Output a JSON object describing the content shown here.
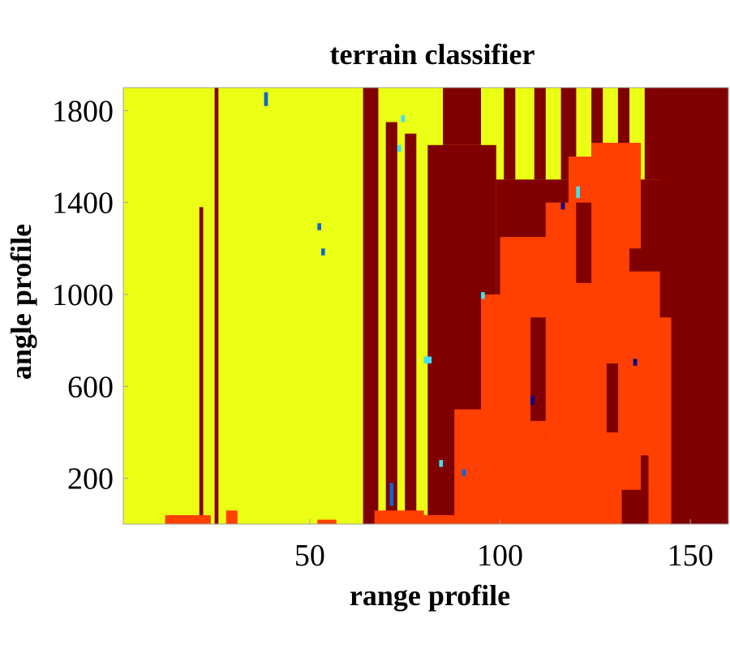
{
  "chart_data": {
    "type": "heatmap",
    "title": "terrain classifier",
    "xlabel": "range profile",
    "ylabel": "angle profile",
    "xlim": [
      1,
      160
    ],
    "ylim": [
      1,
      1900
    ],
    "x_ticks": [
      50,
      100,
      150
    ],
    "y_ticks": [
      200,
      600,
      1000,
      1400,
      1800
    ],
    "grid": false,
    "legend": "none",
    "colors": {
      "class_yellow": "#eaff14",
      "class_darkred": "#800000",
      "class_red": "#ff4000",
      "class_cyan": "#40e0f0",
      "class_blue": "#1464d0",
      "class_navy": "#00008f"
    },
    "background_class": "class_yellow",
    "regions": [
      {
        "class": "class_darkred",
        "x": [
          25,
          26
        ],
        "y": [
          1,
          1900
        ]
      },
      {
        "class": "class_darkred",
        "x": [
          21,
          22
        ],
        "y": [
          1,
          1380
        ]
      },
      {
        "class": "class_red",
        "x": [
          12,
          24
        ],
        "y": [
          1,
          40
        ]
      },
      {
        "class": "class_red",
        "x": [
          28,
          31
        ],
        "y": [
          1,
          60
        ]
      },
      {
        "class": "class_red",
        "x": [
          52,
          57
        ],
        "y": [
          1,
          20
        ]
      },
      {
        "class": "class_darkred",
        "x": [
          64,
          68
        ],
        "y": [
          1,
          1900
        ]
      },
      {
        "class": "class_darkred",
        "x": [
          70,
          73
        ],
        "y": [
          1,
          1750
        ]
      },
      {
        "class": "class_darkred",
        "x": [
          75,
          78
        ],
        "y": [
          1,
          1700
        ]
      },
      {
        "class": "class_red",
        "x": [
          67,
          80
        ],
        "y": [
          1,
          60
        ]
      },
      {
        "class": "class_darkred",
        "x": [
          81,
          99
        ],
        "y": [
          1,
          1650
        ]
      },
      {
        "class": "class_darkred",
        "x": [
          85,
          95
        ],
        "y": [
          1650,
          1900
        ]
      },
      {
        "class": "class_darkred",
        "x": [
          99,
          160
        ],
        "y": [
          1,
          1500
        ]
      },
      {
        "class": "class_darkred",
        "x": [
          101,
          104
        ],
        "y": [
          1500,
          1900
        ]
      },
      {
        "class": "class_darkred",
        "x": [
          109,
          112
        ],
        "y": [
          1500,
          1900
        ]
      },
      {
        "class": "class_darkred",
        "x": [
          116,
          120
        ],
        "y": [
          1500,
          1900
        ]
      },
      {
        "class": "class_darkred",
        "x": [
          124,
          127
        ],
        "y": [
          1500,
          1900
        ]
      },
      {
        "class": "class_darkred",
        "x": [
          131,
          134
        ],
        "y": [
          1500,
          1900
        ]
      },
      {
        "class": "class_darkred",
        "x": [
          138,
          160
        ],
        "y": [
          1500,
          1900
        ]
      },
      {
        "class": "class_darkred",
        "x": [
          142,
          145
        ],
        "y": [
          1400,
          1900
        ]
      },
      {
        "class": "class_red",
        "x": [
          88,
          112
        ],
        "y": [
          1,
          500
        ]
      },
      {
        "class": "class_red",
        "x": [
          95,
          118
        ],
        "y": [
          400,
          1000
        ]
      },
      {
        "class": "class_red",
        "x": [
          100,
          122
        ],
        "y": [
          950,
          1250
        ]
      },
      {
        "class": "class_red",
        "x": [
          112,
          128
        ],
        "y": [
          700,
          1400
        ]
      },
      {
        "class": "class_red",
        "x": [
          118,
          134
        ],
        "y": [
          1100,
          1600
        ]
      },
      {
        "class": "class_red",
        "x": [
          124,
          137
        ],
        "y": [
          1200,
          1660
        ]
      },
      {
        "class": "class_red",
        "x": [
          106,
          132
        ],
        "y": [
          1,
          350
        ]
      },
      {
        "class": "class_red",
        "x": [
          116,
          137
        ],
        "y": [
          150,
          700
        ]
      },
      {
        "class": "class_red",
        "x": [
          126,
          142
        ],
        "y": [
          500,
          1100
        ]
      },
      {
        "class": "class_red",
        "x": [
          139,
          145
        ],
        "y": [
          1,
          900
        ]
      },
      {
        "class": "class_red",
        "x": [
          112,
          140
        ],
        "y": [
          300,
          850
        ]
      },
      {
        "class": "class_red",
        "x": [
          76,
          88
        ],
        "y": [
          1,
          40
        ]
      },
      {
        "class": "class_darkred",
        "x": [
          108,
          112
        ],
        "y": [
          450,
          900
        ]
      },
      {
        "class": "class_darkred",
        "x": [
          120,
          124
        ],
        "y": [
          1050,
          1400
        ]
      },
      {
        "class": "class_darkred",
        "x": [
          128,
          131
        ],
        "y": [
          400,
          700
        ]
      },
      {
        "class": "class_darkred",
        "x": [
          145,
          160
        ],
        "y": [
          1,
          1900
        ]
      },
      {
        "class": "class_cyan",
        "x": [
          74,
          75
        ],
        "y": [
          1750,
          1780
        ]
      },
      {
        "class": "class_cyan",
        "x": [
          73,
          74
        ],
        "y": [
          1620,
          1650
        ]
      },
      {
        "class": "class_cyan",
        "x": [
          120,
          121
        ],
        "y": [
          1420,
          1470
        ]
      },
      {
        "class": "class_cyan",
        "x": [
          80,
          82
        ],
        "y": [
          700,
          730
        ]
      },
      {
        "class": "class_cyan",
        "x": [
          95,
          96
        ],
        "y": [
          980,
          1010
        ]
      },
      {
        "class": "class_cyan",
        "x": [
          84,
          85
        ],
        "y": [
          250,
          280
        ]
      },
      {
        "class": "class_blue",
        "x": [
          38,
          39
        ],
        "y": [
          1820,
          1880
        ]
      },
      {
        "class": "class_blue",
        "x": [
          52,
          53
        ],
        "y": [
          1280,
          1310
        ]
      },
      {
        "class": "class_blue",
        "x": [
          53,
          54
        ],
        "y": [
          1170,
          1200
        ]
      },
      {
        "class": "class_blue",
        "x": [
          71,
          72
        ],
        "y": [
          80,
          180
        ]
      },
      {
        "class": "class_blue",
        "x": [
          90,
          91
        ],
        "y": [
          210,
          240
        ]
      },
      {
        "class": "class_navy",
        "x": [
          108,
          109
        ],
        "y": [
          520,
          560
        ]
      },
      {
        "class": "class_navy",
        "x": [
          116,
          117
        ],
        "y": [
          1370,
          1400
        ]
      },
      {
        "class": "class_navy",
        "x": [
          135,
          136
        ],
        "y": [
          690,
          720
        ]
      }
    ]
  }
}
